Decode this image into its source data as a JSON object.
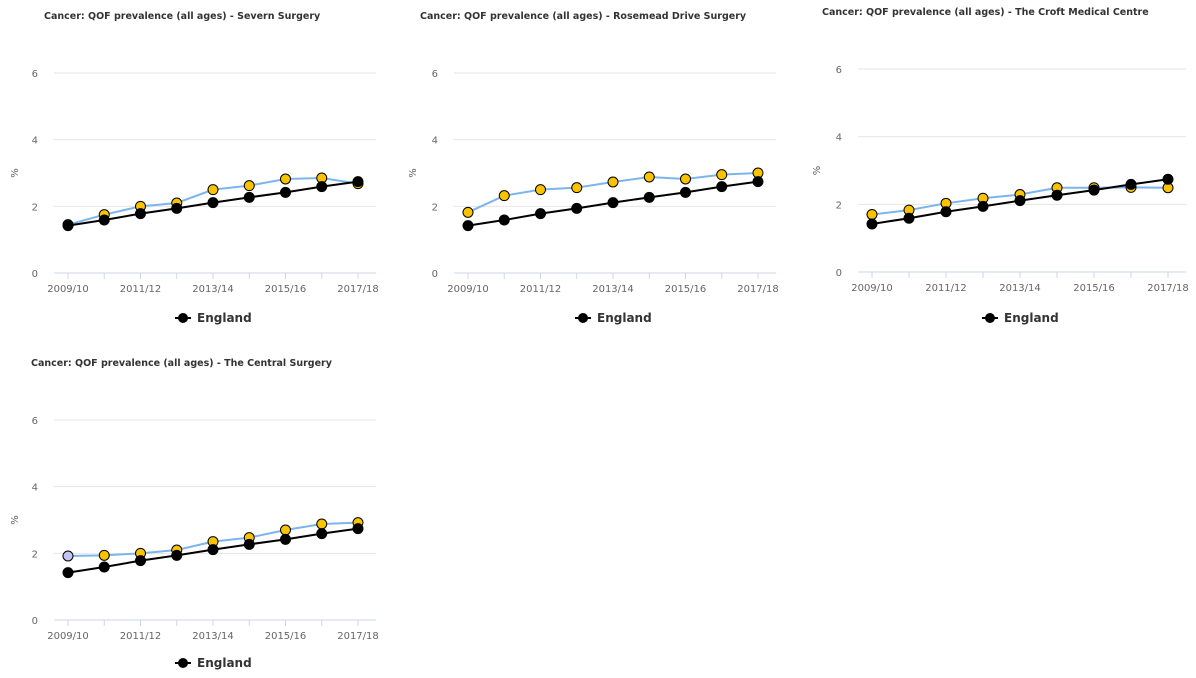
{
  "chart_data": [
    {
      "type": "line",
      "title": "Cancer: QOF prevalence (all ages) - Severn Surgery",
      "ylabel": "%",
      "ylim": [
        0,
        6
      ],
      "yticks": [
        0,
        2,
        4,
        6
      ],
      "x": [
        "2009/10",
        "2010/11",
        "2011/12",
        "2012/13",
        "2013/14",
        "2014/15",
        "2015/16",
        "2016/17",
        "2017/18"
      ],
      "xtick_labels": [
        "2009/10",
        "2011/12",
        "2013/14",
        "2015/16",
        "2017/18"
      ],
      "grid": true,
      "legend": "bottom-center",
      "series": [
        {
          "role": "practice",
          "color": "#7cb5ec",
          "values": [
            1.45,
            1.75,
            2.0,
            2.1,
            2.5,
            2.62,
            2.82,
            2.85,
            2.68
          ],
          "marker_colors": [
            "#f9c300",
            "#f9c300",
            "#f9c300",
            "#f9c300",
            "#f9c300",
            "#f9c300",
            "#f9c300",
            "#f9c300",
            "#f9c300"
          ]
        },
        {
          "role": "england",
          "name": "England",
          "color": "#000000",
          "values": [
            1.42,
            1.59,
            1.78,
            1.94,
            2.11,
            2.27,
            2.42,
            2.59,
            2.74
          ]
        }
      ]
    },
    {
      "type": "line",
      "title": "Cancer: QOF prevalence (all ages) - Rosemead Drive Surgery",
      "ylabel": "%",
      "ylim": [
        0,
        6
      ],
      "yticks": [
        0,
        2,
        4,
        6
      ],
      "x": [
        "2009/10",
        "2010/11",
        "2011/12",
        "2012/13",
        "2013/14",
        "2014/15",
        "2015/16",
        "2016/17",
        "2017/18"
      ],
      "xtick_labels": [
        "2009/10",
        "2011/12",
        "2013/14",
        "2015/16",
        "2017/18"
      ],
      "grid": true,
      "legend": "bottom-center",
      "series": [
        {
          "role": "practice",
          "color": "#7cb5ec",
          "values": [
            1.82,
            2.32,
            2.5,
            2.56,
            2.73,
            2.88,
            2.82,
            2.95,
            3.0
          ],
          "marker_colors": [
            "#f9c300",
            "#f9c300",
            "#f9c300",
            "#f9c300",
            "#f9c300",
            "#f9c300",
            "#f9c300",
            "#f9c300",
            "#f9c300"
          ]
        },
        {
          "role": "england",
          "name": "England",
          "color": "#000000",
          "values": [
            1.42,
            1.59,
            1.78,
            1.94,
            2.11,
            2.27,
            2.42,
            2.59,
            2.74
          ]
        }
      ]
    },
    {
      "type": "line",
      "title": "Cancer: QOF prevalence (all ages) - The Croft Medical Centre",
      "ylabel": "%",
      "ylim": [
        0,
        6
      ],
      "yticks": [
        0,
        2,
        4,
        6
      ],
      "x": [
        "2009/10",
        "2010/11",
        "2011/12",
        "2012/13",
        "2013/14",
        "2014/15",
        "2015/16",
        "2016/17",
        "2017/18"
      ],
      "xtick_labels": [
        "2009/10",
        "2011/12",
        "2013/14",
        "2015/16",
        "2017/18"
      ],
      "grid": true,
      "legend": "bottom-center",
      "series": [
        {
          "role": "practice",
          "color": "#7cb5ec",
          "values": [
            1.7,
            1.83,
            2.03,
            2.18,
            2.29,
            2.49,
            2.49,
            2.5,
            2.49
          ],
          "marker_colors": [
            "#f9c300",
            "#f9c300",
            "#f9c300",
            "#f9c300",
            "#f9c300",
            "#f9c300",
            "#f9c300",
            "#f9c300",
            "#f9c300"
          ]
        },
        {
          "role": "england",
          "name": "England",
          "color": "#000000",
          "values": [
            1.42,
            1.59,
            1.78,
            1.94,
            2.11,
            2.27,
            2.42,
            2.59,
            2.74
          ]
        }
      ]
    },
    {
      "type": "line",
      "title": "Cancer: QOF prevalence (all ages) - The Central Surgery",
      "ylabel": "%",
      "ylim": [
        0,
        6
      ],
      "yticks": [
        0,
        2,
        4,
        6
      ],
      "x": [
        "2009/10",
        "2010/11",
        "2011/12",
        "2012/13",
        "2013/14",
        "2014/15",
        "2015/16",
        "2016/17",
        "2017/18"
      ],
      "xtick_labels": [
        "2009/10",
        "2011/12",
        "2013/14",
        "2015/16",
        "2017/18"
      ],
      "grid": true,
      "legend": "bottom-center",
      "series": [
        {
          "role": "practice",
          "color": "#7cb5ec",
          "values": [
            1.92,
            1.94,
            2.0,
            2.1,
            2.35,
            2.47,
            2.7,
            2.88,
            2.92
          ],
          "marker_colors": [
            "#c4c4f2",
            "#f9c300",
            "#f9c300",
            "#f9c300",
            "#f9c300",
            "#f9c300",
            "#f9c300",
            "#f9c300",
            "#f9c300"
          ]
        },
        {
          "role": "england",
          "name": "England",
          "color": "#000000",
          "values": [
            1.42,
            1.59,
            1.78,
            1.94,
            2.11,
            2.27,
            2.42,
            2.59,
            2.74
          ]
        }
      ]
    }
  ]
}
